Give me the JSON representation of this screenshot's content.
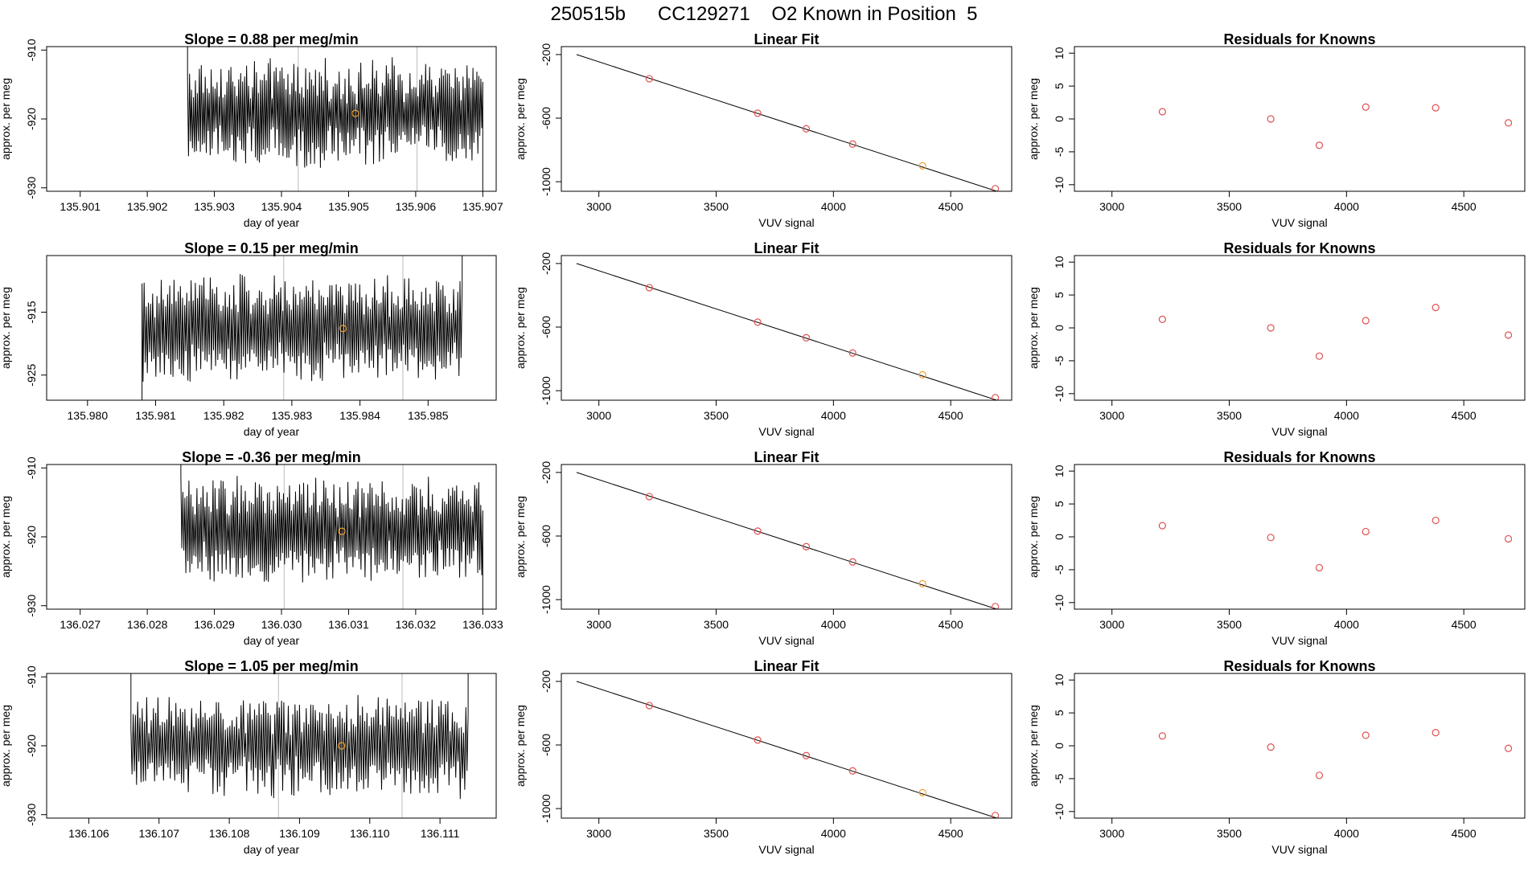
{
  "figure": {
    "title": "250515b      CC129271    O2 Known in Position  5"
  },
  "colors": {
    "trace": "#000000",
    "points": "#e05050",
    "highlight": "#f0a030",
    "marker_line": "#bbbbbb",
    "fit_line": "#000000"
  },
  "chart_data": [
    {
      "type": "line",
      "panel": "slope",
      "row": 1,
      "title": "Slope =  0.88  per meg/min",
      "xlabel": "day of year",
      "ylabel": "approx. per meg",
      "xlim": [
        135.9005,
        135.9072
      ],
      "ylim": [
        -930.5,
        -909.5
      ],
      "xticks": [
        "135.901",
        "135.902",
        "135.903",
        "135.904",
        "135.905",
        "135.906",
        "135.907"
      ],
      "yticks": [
        -910,
        -920,
        -930
      ],
      "x_start": 135.9026,
      "x_end": 135.907,
      "mean": -919.2,
      "amplitude": 5.5,
      "vlines": [
        135.90425,
        135.90602
      ],
      "highlight_point": [
        135.9051,
        -919.2
      ]
    },
    {
      "type": "scatter",
      "panel": "fit",
      "row": 1,
      "title": "Linear Fit",
      "xlabel": "VUV signal",
      "ylabel": "approx. per meg",
      "xlim": [
        2840,
        4760
      ],
      "ylim": [
        -1060,
        -150
      ],
      "xticks": [
        3000,
        3500,
        4000,
        4500
      ],
      "yticks": [
        -200,
        -600,
        -1000
      ],
      "x": [
        3215,
        3677,
        3884,
        4082,
        4380,
        4690
      ],
      "y": [
        -352,
        -569,
        -667,
        -763,
        -900,
        -1044
      ],
      "highlight_index": 4,
      "fit_line": [
        [
          2905,
          -200
        ],
        [
          4730,
          -1076
        ]
      ]
    },
    {
      "type": "scatter",
      "panel": "residuals",
      "row": 1,
      "title": "Residuals for Knowns",
      "xlabel": "VUV signal",
      "ylabel": "approx. per meg",
      "xlim": [
        2840,
        4760
      ],
      "ylim": [
        -11,
        11
      ],
      "xticks": [
        3000,
        3500,
        4000,
        4500
      ],
      "yticks": [
        10,
        5,
        0,
        -5,
        -10
      ],
      "x": [
        3215,
        3677,
        3884,
        4082,
        4380,
        4690
      ],
      "y": [
        1.1,
        0.0,
        -4.0,
        1.8,
        1.7,
        -0.6
      ]
    },
    {
      "type": "line",
      "panel": "slope",
      "row": 2,
      "title": "Slope =  0.15  per meg/min",
      "xlabel": "day of year",
      "ylabel": "approx. per meg",
      "xlim": [
        135.9794,
        135.986
      ],
      "ylim": [
        -929.0,
        -906.0
      ],
      "xticks": [
        "135.980",
        "135.981",
        "135.982",
        "135.983",
        "135.984",
        "135.985"
      ],
      "yticks": [
        -915,
        -925
      ],
      "x_start": 135.9808,
      "x_end": 135.9855,
      "mean": -917.5,
      "amplitude": 6.0,
      "vlines": [
        135.98288,
        135.98463
      ],
      "highlight_point": [
        135.98375,
        -917.6
      ]
    },
    {
      "type": "scatter",
      "panel": "fit",
      "row": 2,
      "title": "Linear Fit",
      "xlabel": "VUV signal",
      "ylabel": "approx. per meg",
      "xlim": [
        2840,
        4760
      ],
      "ylim": [
        -1060,
        -150
      ],
      "xticks": [
        3000,
        3500,
        4000,
        4500
      ],
      "yticks": [
        -200,
        -600,
        -1000
      ],
      "x": [
        3215,
        3677,
        3884,
        4082,
        4380,
        4690
      ],
      "y": [
        -352,
        -569,
        -667,
        -763,
        -900,
        -1044
      ],
      "highlight_index": 4,
      "fit_line": [
        [
          2905,
          -200
        ],
        [
          4730,
          -1076
        ]
      ]
    },
    {
      "type": "scatter",
      "panel": "residuals",
      "row": 2,
      "title": "Residuals for Knowns",
      "xlabel": "VUV signal",
      "ylabel": "approx. per meg",
      "xlim": [
        2840,
        4760
      ],
      "ylim": [
        -11,
        11
      ],
      "xticks": [
        3000,
        3500,
        4000,
        4500
      ],
      "yticks": [
        10,
        5,
        0,
        -5,
        -10
      ],
      "x": [
        3215,
        3677,
        3884,
        4082,
        4380,
        4690
      ],
      "y": [
        1.3,
        0.0,
        -4.3,
        1.1,
        3.1,
        -1.1
      ]
    },
    {
      "type": "line",
      "panel": "slope",
      "row": 3,
      "title": "Slope =  -0.36  per meg/min",
      "xlabel": "day of year",
      "ylabel": "approx. per meg",
      "xlim": [
        136.0265,
        136.0332
      ],
      "ylim": [
        -930.5,
        -909.5
      ],
      "xticks": [
        "136.027",
        "136.028",
        "136.029",
        "136.030",
        "136.031",
        "136.032",
        "136.033"
      ],
      "yticks": [
        -910,
        -920,
        -930
      ],
      "x_start": 136.0285,
      "x_end": 136.033,
      "mean": -919.0,
      "amplitude": 5.5,
      "vlines": [
        136.03004,
        136.03181
      ],
      "highlight_point": [
        136.0309,
        -919.2
      ]
    },
    {
      "type": "scatter",
      "panel": "fit",
      "row": 3,
      "title": "Linear Fit",
      "xlabel": "VUV signal",
      "ylabel": "approx. per meg",
      "xlim": [
        2840,
        4760
      ],
      "ylim": [
        -1060,
        -150
      ],
      "xticks": [
        3000,
        3500,
        4000,
        4500
      ],
      "yticks": [
        -200,
        -600,
        -1000
      ],
      "x": [
        3215,
        3677,
        3884,
        4082,
        4380,
        4690
      ],
      "y": [
        -352,
        -569,
        -667,
        -763,
        -900,
        -1044
      ],
      "highlight_index": 4,
      "fit_line": [
        [
          2905,
          -200
        ],
        [
          4730,
          -1076
        ]
      ]
    },
    {
      "type": "scatter",
      "panel": "residuals",
      "row": 3,
      "title": "Residuals for Knowns",
      "xlabel": "VUV signal",
      "ylabel": "approx. per meg",
      "xlim": [
        2840,
        4760
      ],
      "ylim": [
        -11,
        11
      ],
      "xticks": [
        3000,
        3500,
        4000,
        4500
      ],
      "yticks": [
        10,
        5,
        0,
        -5,
        -10
      ],
      "x": [
        3215,
        3677,
        3884,
        4082,
        4380,
        4690
      ],
      "y": [
        1.7,
        -0.1,
        -4.7,
        0.8,
        2.5,
        -0.3
      ]
    },
    {
      "type": "line",
      "panel": "slope",
      "row": 4,
      "title": "Slope =  1.05  per meg/min",
      "xlabel": "day of year",
      "ylabel": "approx. per meg",
      "xlim": [
        136.1054,
        136.1118
      ],
      "ylim": [
        -930.5,
        -909.5
      ],
      "xticks": [
        "136.106",
        "136.107",
        "136.108",
        "136.109",
        "136.110",
        "136.111"
      ],
      "yticks": [
        -910,
        -920,
        -930
      ],
      "x_start": 136.1066,
      "x_end": 136.1114,
      "mean": -919.8,
      "amplitude": 5.5,
      "vlines": [
        136.1087,
        136.11046
      ],
      "highlight_point": [
        136.1096,
        -920.0
      ]
    },
    {
      "type": "scatter",
      "panel": "fit",
      "row": 4,
      "title": "Linear Fit",
      "xlabel": "VUV signal",
      "ylabel": "approx. per meg",
      "xlim": [
        2840,
        4760
      ],
      "ylim": [
        -1060,
        -150
      ],
      "xticks": [
        3000,
        3500,
        4000,
        4500
      ],
      "yticks": [
        -200,
        -600,
        -1000
      ],
      "x": [
        3215,
        3677,
        3884,
        4082,
        4380,
        4690
      ],
      "y": [
        -352,
        -569,
        -667,
        -763,
        -900,
        -1044
      ],
      "highlight_index": 4,
      "fit_line": [
        [
          2905,
          -200
        ],
        [
          4730,
          -1076
        ]
      ]
    },
    {
      "type": "scatter",
      "panel": "residuals",
      "row": 4,
      "title": "Residuals for Knowns",
      "xlabel": "VUV signal",
      "ylabel": "approx. per meg",
      "xlim": [
        2840,
        4760
      ],
      "ylim": [
        -11,
        11
      ],
      "xticks": [
        3000,
        3500,
        4000,
        4500
      ],
      "yticks": [
        10,
        5,
        0,
        -5,
        -10
      ],
      "x": [
        3215,
        3677,
        3884,
        4082,
        4380,
        4690
      ],
      "y": [
        1.5,
        -0.2,
        -4.5,
        1.6,
        2.0,
        -0.4
      ]
    }
  ]
}
